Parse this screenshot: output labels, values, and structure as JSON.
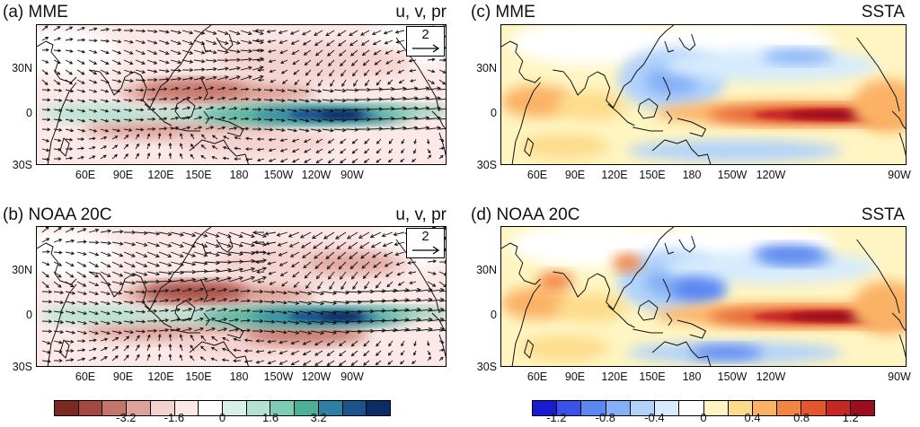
{
  "panels": [
    {
      "id": "a",
      "title": "(a) MME",
      "var": "u, v, pr",
      "ref_vector": "2"
    },
    {
      "id": "b",
      "title": "(b) NOAA 20C",
      "var": "u, v, pr",
      "ref_vector": "2"
    },
    {
      "id": "c",
      "title": "(c) MME",
      "var": "SSTA"
    },
    {
      "id": "d",
      "title": "(d) NOAA 20C",
      "var": "SSTA"
    }
  ],
  "axes": {
    "lat_labels": [
      "30N",
      "0",
      "30S"
    ],
    "lon_labels": [
      "60E",
      "90E",
      "120E",
      "150E",
      "180",
      "150W",
      "120W",
      "90W"
    ]
  },
  "colorbars": {
    "precip": {
      "ticks": [
        "-3.2",
        "-1.6",
        "0",
        "1.6",
        "3.2"
      ],
      "colors": [
        "#7a2a22",
        "#a24a3f",
        "#c47569",
        "#dea29a",
        "#f4d2cf",
        "#fbe8e7",
        "#ffffff",
        "#d8f0e9",
        "#b1e2d2",
        "#7ecab4",
        "#4fae97",
        "#2f7fa2",
        "#1d538b",
        "#0b2d63"
      ]
    },
    "sst": {
      "ticks": [
        "-1.2",
        "-0.8",
        "-0.4",
        "0",
        "0.4",
        "0.8",
        "1.2"
      ],
      "colors": [
        "#1a1ad0",
        "#3b52e6",
        "#5c86f0",
        "#86b0f6",
        "#b1d2fb",
        "#d6ebfd",
        "#ffffff",
        "#fff5c2",
        "#fddb8c",
        "#fbb266",
        "#f38544",
        "#e4562f",
        "#c52626",
        "#9c0e1f"
      ]
    }
  }
}
